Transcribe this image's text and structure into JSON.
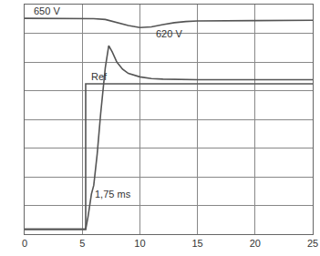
{
  "chart_data": {
    "type": "line",
    "xlim": [
      0,
      25
    ],
    "xticks": [
      0,
      5,
      10,
      15,
      20,
      25
    ],
    "ylim": [
      0,
      8
    ],
    "yticks": [
      0,
      1,
      2,
      3,
      4,
      5,
      6,
      7,
      8
    ],
    "grid": true,
    "tick_labels": "x",
    "series": [
      {
        "color": "#555555",
        "x": [
          0,
          5,
          6,
          7,
          8,
          9,
          10,
          11,
          12,
          13,
          14,
          15,
          20,
          25
        ],
        "values": [
          7.52,
          7.52,
          7.51,
          7.48,
          7.38,
          7.27,
          7.2,
          7.22,
          7.3,
          7.37,
          7.41,
          7.43,
          7.44,
          7.45
        ]
      },
      {
        "color": "#555555",
        "x": [
          0,
          5.3,
          5.3,
          25
        ],
        "values": [
          0.17,
          0.17,
          5.24,
          5.24
        ]
      },
      {
        "color": "#555555",
        "x": [
          0,
          5.3,
          5.5,
          5.8,
          6.0,
          6.3,
          6.6,
          7.0,
          7.3,
          7.6,
          8.0,
          8.5,
          9.0,
          10,
          11,
          12,
          15,
          20,
          25
        ],
        "values": [
          0.17,
          0.17,
          0.6,
          1.4,
          1.7,
          2.8,
          4.2,
          5.8,
          6.57,
          6.35,
          6.0,
          5.75,
          5.6,
          5.48,
          5.42,
          5.4,
          5.38,
          5.38,
          5.38
        ]
      }
    ],
    "annotations": [
      {
        "text": "650 V",
        "x": 0.6,
        "y": 7.78
      },
      {
        "text": "620 V",
        "x": 11.2,
        "y": 6.98
      },
      {
        "text": "Ref",
        "x": 5.6,
        "y": 5.5
      },
      {
        "text": "1,75 ms",
        "x": 5.9,
        "y": 1.4
      }
    ]
  }
}
